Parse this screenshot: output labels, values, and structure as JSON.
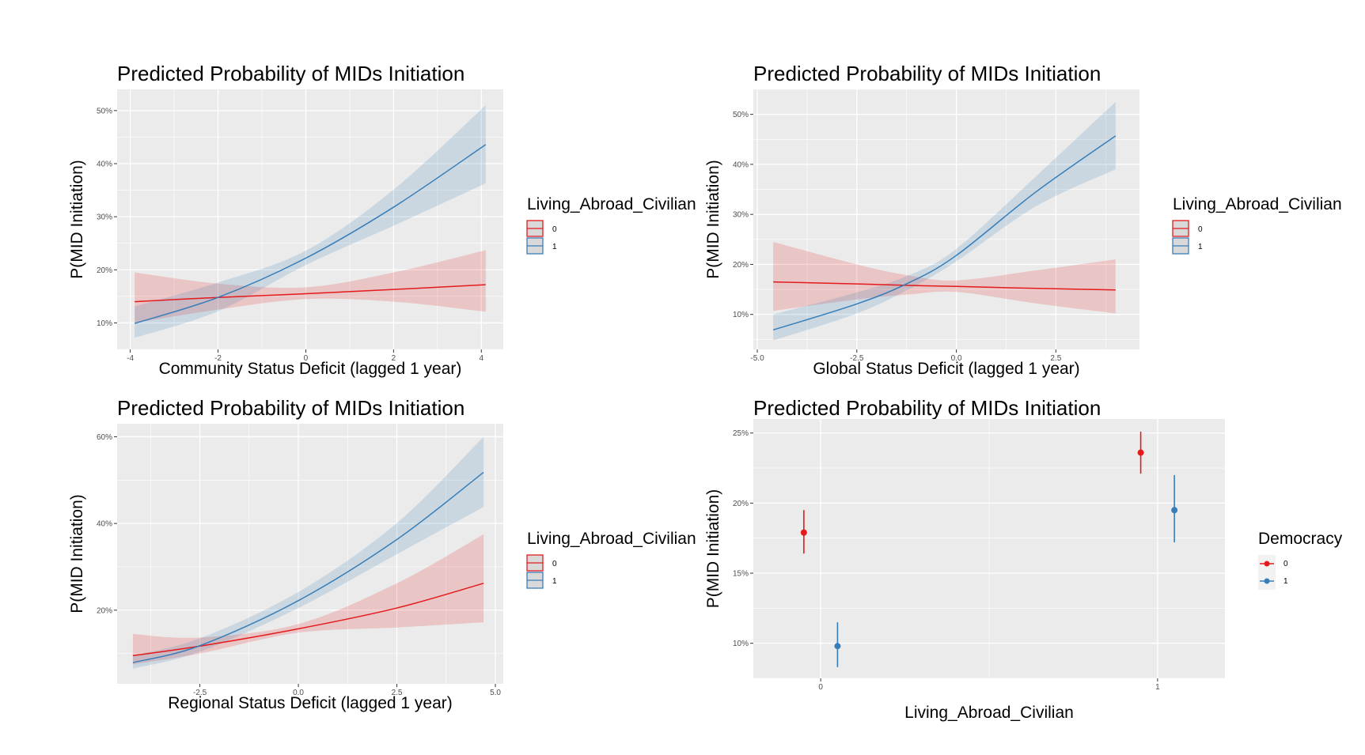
{
  "colors": {
    "panel_bg": "#ebebeb",
    "grid": "#ffffff",
    "series_0": "#e41a1c",
    "series_1": "#377eb8",
    "ribbon_0": "#e41a1c",
    "ribbon_1": "#377eb8",
    "legend_key_bg": "#d9d9d9"
  },
  "chart_data": [
    {
      "id": "community",
      "type": "line",
      "title": "Predicted Probability of MIDs Initiation",
      "xlabel": "Community Status Deficit (lagged 1 year)",
      "ylabel": "P(MID Initiation)",
      "xlim": [
        -4.3,
        4.5
      ],
      "ylim": [
        0.05,
        0.54
      ],
      "xticks": [
        -4,
        -2,
        0,
        2,
        4
      ],
      "xtick_labels": [
        "-4",
        "-2",
        "0",
        "2",
        "4"
      ],
      "yticks": [
        0.1,
        0.2,
        0.3,
        0.4,
        0.5
      ],
      "ytick_labels": [
        "10%",
        "20%",
        "30%",
        "40%",
        "50%"
      ],
      "grid": true,
      "legend": {
        "title": "Living_Abroad_Civilian",
        "entries": [
          "0",
          "1"
        ],
        "placement": "right"
      },
      "series": [
        {
          "name": "0",
          "x": [
            -3.9,
            -2,
            0,
            2,
            4.1
          ],
          "y": [
            0.14,
            0.148,
            0.155,
            0.163,
            0.172
          ],
          "lower": [
            0.1,
            0.125,
            0.145,
            0.14,
            0.121
          ],
          "upper": [
            0.195,
            0.174,
            0.167,
            0.195,
            0.237
          ]
        },
        {
          "name": "1",
          "x": [
            -3.9,
            -2,
            0,
            2,
            4.1
          ],
          "y": [
            0.099,
            0.148,
            0.222,
            0.318,
            0.436
          ],
          "lower": [
            0.072,
            0.122,
            0.209,
            0.283,
            0.363
          ],
          "upper": [
            0.131,
            0.176,
            0.236,
            0.351,
            0.51
          ]
        }
      ]
    },
    {
      "id": "global",
      "type": "line",
      "title": "Predicted Probability of MIDs Initiation",
      "xlabel": "Global Status Deficit (lagged 1 year)",
      "ylabel": "P(MID Initiation)",
      "xlim": [
        -5.1,
        4.6
      ],
      "ylim": [
        0.03,
        0.55
      ],
      "xticks": [
        -5.0,
        -2.5,
        0.0,
        2.5
      ],
      "xtick_labels": [
        "-5.0",
        "-2.5",
        "0.0",
        "2.5"
      ],
      "yticks": [
        0.1,
        0.2,
        0.3,
        0.4,
        0.5
      ],
      "ytick_labels": [
        "10%",
        "20%",
        "30%",
        "40%",
        "50%"
      ],
      "grid": true,
      "legend": {
        "title": "Living_Abroad_Civilian",
        "entries": [
          "0",
          "1"
        ],
        "placement": "right"
      },
      "series": [
        {
          "name": "0",
          "x": [
            -4.6,
            -2.5,
            -1.2,
            0,
            2,
            4.0
          ],
          "y": [
            0.165,
            0.161,
            0.158,
            0.156,
            0.152,
            0.149
          ],
          "lower": [
            0.107,
            0.13,
            0.14,
            0.145,
            0.122,
            0.102
          ],
          "upper": [
            0.245,
            0.2,
            0.178,
            0.168,
            0.188,
            0.21
          ]
        },
        {
          "name": "1",
          "x": [
            -4.6,
            -2.5,
            -1.2,
            0,
            2,
            4.0
          ],
          "y": [
            0.069,
            0.121,
            0.163,
            0.218,
            0.345,
            0.457
          ],
          "lower": [
            0.048,
            0.102,
            0.15,
            0.206,
            0.316,
            0.39
          ],
          "upper": [
            0.1,
            0.144,
            0.178,
            0.231,
            0.376,
            0.525
          ]
        }
      ]
    },
    {
      "id": "regional",
      "type": "line",
      "title": "Predicted Probability of MIDs Initiation",
      "xlabel": "Regional Status Deficit (lagged 1 year)",
      "ylabel": "P(MID Initiation)",
      "xlim": [
        -4.6,
        5.2
      ],
      "ylim": [
        0.03,
        0.63
      ],
      "xticks": [
        -2.5,
        0.0,
        2.5,
        5.0
      ],
      "xtick_labels": [
        "-2.5",
        "0.0",
        "2.5",
        "5.0"
      ],
      "yticks": [
        0.2,
        0.4,
        0.6
      ],
      "ytick_labels": [
        "20%",
        "40%",
        "60%"
      ],
      "grid": true,
      "legend": {
        "title": "Living_Abroad_Civilian",
        "entries": [
          "0",
          "1"
        ],
        "placement": "right"
      },
      "series": [
        {
          "name": "0",
          "x": [
            -4.2,
            -2.5,
            0,
            2.5,
            4.7
          ],
          "y": [
            0.095,
            0.117,
            0.157,
            0.205,
            0.262
          ],
          "lower": [
            0.075,
            0.1,
            0.148,
            0.16,
            0.172
          ],
          "upper": [
            0.145,
            0.137,
            0.168,
            0.262,
            0.375
          ]
        },
        {
          "name": "1",
          "x": [
            -4.2,
            -2.5,
            0,
            2.5,
            4.7
          ],
          "y": [
            0.079,
            0.118,
            0.222,
            0.363,
            0.518
          ],
          "lower": [
            0.065,
            0.104,
            0.205,
            0.329,
            0.438
          ],
          "upper": [
            0.095,
            0.135,
            0.242,
            0.401,
            0.6
          ]
        }
      ]
    },
    {
      "id": "democracy",
      "type": "scatter",
      "title": "Predicted Probability of MIDs Initiation",
      "xlabel": "Living_Abroad_Civilian",
      "ylabel": "P(MID Initiation)",
      "xlim": [
        -0.2,
        1.2
      ],
      "ylim": [
        0.075,
        0.26
      ],
      "xticks": [
        0,
        1
      ],
      "xtick_labels": [
        "0",
        "1"
      ],
      "yticks": [
        0.1,
        0.15,
        0.2,
        0.25
      ],
      "ytick_labels": [
        "10%",
        "15%",
        "20%",
        "25%"
      ],
      "grid": true,
      "legend": {
        "title": "Democracy",
        "entries": [
          "0",
          "1"
        ],
        "placement": "right"
      },
      "series": [
        {
          "name": "0",
          "x": [
            0,
            1
          ],
          "dodge": -0.05,
          "y": [
            0.179,
            0.236
          ],
          "lower": [
            0.164,
            0.221
          ],
          "upper": [
            0.195,
            0.251
          ]
        },
        {
          "name": "1",
          "x": [
            0,
            1
          ],
          "dodge": 0.05,
          "y": [
            0.098,
            0.195
          ],
          "lower": [
            0.083,
            0.172
          ],
          "upper": [
            0.115,
            0.22
          ]
        }
      ]
    }
  ]
}
